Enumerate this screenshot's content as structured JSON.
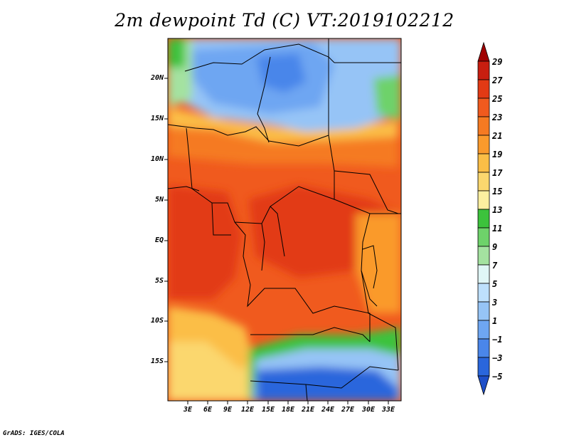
{
  "title": "2m dewpoint Td (C) VT:2019102212",
  "credit": "GrADS: IGES/COLA",
  "axes": {
    "lat_labels": [
      "20N",
      "15N",
      "10N",
      "5N",
      "EQ",
      "5S",
      "10S",
      "15S"
    ],
    "lon_labels": [
      "3E",
      "6E",
      "9E",
      "12E",
      "15E",
      "18E",
      "21E",
      "24E",
      "27E",
      "30E",
      "33E"
    ]
  },
  "colorbar": {
    "labels": [
      "29",
      "27",
      "25",
      "23",
      "21",
      "19",
      "17",
      "15",
      "13",
      "11",
      "9",
      "7",
      "5",
      "3",
      "1",
      "−1",
      "−3",
      "−5"
    ],
    "colors": [
      "#a00000",
      "#c81e10",
      "#e23a14",
      "#f05a1e",
      "#f57a22",
      "#fa9a2c",
      "#fbbe46",
      "#fbd76e",
      "#fdf0a0",
      "#3cc23c",
      "#6ed26a",
      "#a4e2a0",
      "#e0f6f6",
      "#bee0fc",
      "#96c4f6",
      "#6ea6f2",
      "#4a86ea",
      "#2a66dc",
      "#1e4fc8"
    ]
  },
  "map": {
    "region": "Central Africa",
    "field": "2m dewpoint",
    "units": "C"
  }
}
